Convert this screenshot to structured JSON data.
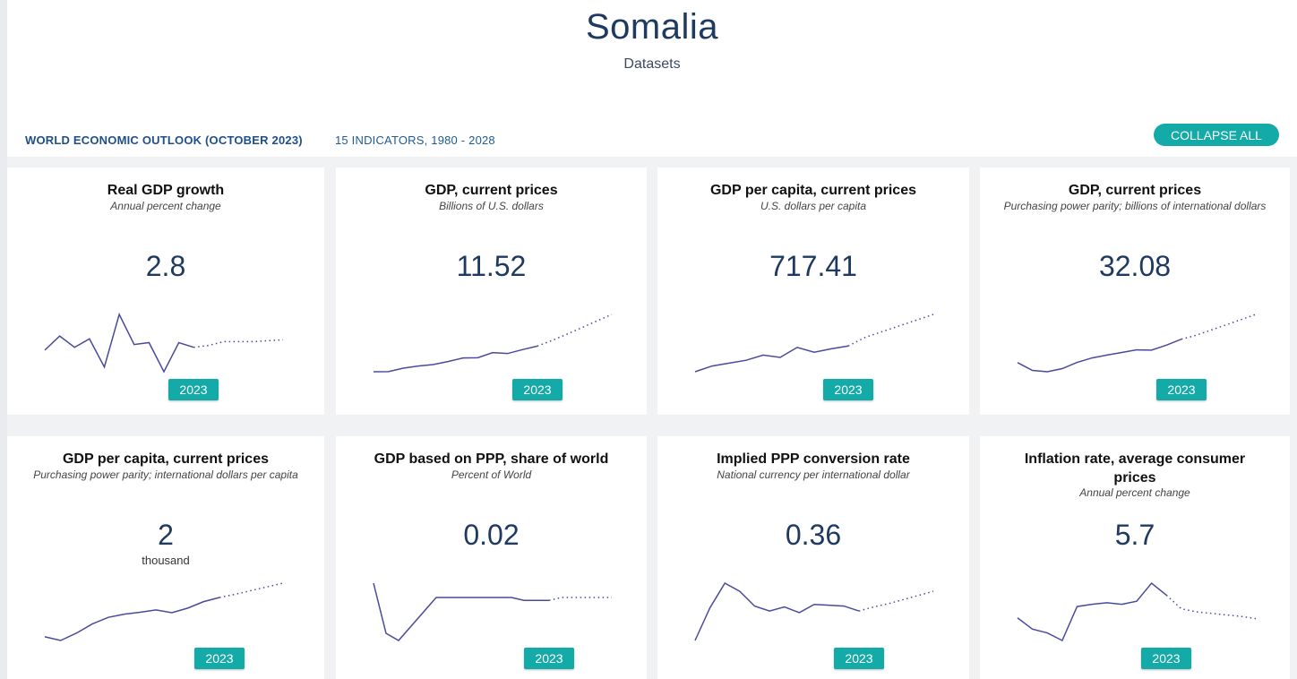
{
  "page": {
    "country": "Somalia",
    "subtitle": "Datasets"
  },
  "section": {
    "title": "WORLD ECONOMIC OUTLOOK (OCTOBER 2023)",
    "info": "15 INDICATORS, 1980 - 2028",
    "collapse_label": "COLLAPSE ALL"
  },
  "colors": {
    "accent": "#13aaa8",
    "line": "#4a4a9c",
    "title_blue": "#1f3a60"
  },
  "cards": [
    {
      "title": "Real GDP growth",
      "subtitle": "Annual percent change",
      "value": "2.8",
      "unit": "",
      "year": "2023",
      "sparkline": [
        3.0,
        4.5,
        3.3,
        4.2,
        1.2,
        6.8,
        3.6,
        3.8,
        0.7,
        3.8,
        3.3,
        3.5,
        3.9,
        3.9,
        3.9,
        4.0,
        4.1
      ],
      "solid_count": 11
    },
    {
      "title": "GDP, current prices",
      "subtitle": "Billions of U.S. dollars",
      "value": "11.52",
      "unit": "",
      "year": "2023",
      "sparkline": [
        0,
        0.05,
        1.2,
        1.9,
        2.4,
        3.4,
        4.6,
        4.7,
        6.4,
        6.1,
        7.4,
        8.6,
        10.5,
        12.6,
        14.8,
        17.0,
        19.2
      ],
      "solid_count": 12
    },
    {
      "title": "GDP per capita, current prices",
      "subtitle": "U.S. dollars per capita",
      "value": "717.41",
      "unit": "",
      "year": "2023",
      "sparkline": [
        0,
        2.0,
        3.0,
        4.0,
        5.8,
        5.0,
        8.5,
        6.8,
        8.0,
        9.0,
        12.0,
        14.0,
        16.0,
        18.0,
        20.0
      ],
      "solid_count": 10
    },
    {
      "title": "GDP, current prices",
      "subtitle": "Purchasing power parity; billions of international dollars",
      "value": "32.08",
      "unit": "",
      "year": "2023",
      "sparkline": [
        3.5,
        0.5,
        0,
        1.2,
        3.6,
        5.3,
        6.4,
        7.4,
        8.4,
        8.3,
        10.2,
        12.5,
        14.0,
        16.0,
        18.0,
        20.0,
        22.0
      ],
      "solid_count": 12
    },
    {
      "title": "GDP per capita, current prices",
      "subtitle": "Purchasing power parity; international dollars per capita",
      "value": "2",
      "unit": "thousand",
      "year": "2023",
      "sparkline": [
        0.8,
        0,
        1.6,
        3.6,
        5.0,
        5.7,
        6.1,
        6.6,
        6.0,
        7.0,
        8.4,
        9.3,
        10.0,
        10.8,
        11.6,
        12.4
      ],
      "solid_count": 12
    },
    {
      "title": "GDP based on PPP, share of world",
      "subtitle": "Percent of World",
      "value": "0.02",
      "unit": "",
      "year": "2023",
      "sparkline": [
        0.06,
        0.025,
        0.02,
        0.03,
        0.04,
        0.05,
        0.05,
        0.05,
        0.05,
        0.05,
        0.05,
        0.05,
        0.048,
        0.048,
        0.048,
        0.05,
        0.05,
        0.05,
        0.05,
        0.05
      ],
      "solid_count": 15
    },
    {
      "title": "Implied PPP conversion rate",
      "subtitle": "National currency per international dollar",
      "value": "0.36",
      "unit": "",
      "year": "2023",
      "sparkline": [
        0,
        4.0,
        7.0,
        6.0,
        4.2,
        3.6,
        4.1,
        3.4,
        4.4,
        4.3,
        4.2,
        3.6,
        4.1,
        4.5,
        5.0,
        5.5,
        6.0
      ],
      "solid_count": 12
    },
    {
      "title": "Inflation rate, average consumer prices",
      "subtitle": "Annual percent change",
      "value": "5.7",
      "unit": "",
      "year": "2023",
      "sparkline": [
        3.0,
        1.5,
        1.0,
        0,
        4.5,
        4.8,
        5.0,
        4.8,
        5.2,
        7.6,
        6.0,
        4.2,
        3.8,
        3.6,
        3.4,
        3.2,
        2.9
      ],
      "solid_count": 11
    }
  ]
}
